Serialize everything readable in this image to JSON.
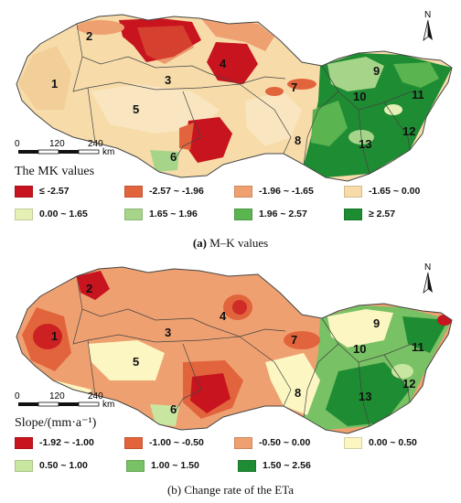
{
  "figure": {
    "map_units_km": [
      "0",
      "120",
      "240",
      "km"
    ],
    "north_label": "N",
    "region_numbers": [
      "1",
      "2",
      "3",
      "4",
      "5",
      "6",
      "7",
      "8",
      "9",
      "10",
      "11",
      "12",
      "13"
    ]
  },
  "panels": [
    {
      "id": "a",
      "legend_title": "The MK values",
      "caption_letter": "(a)",
      "caption_text": " M–K values",
      "legend": [
        {
          "label": "≤ -2.57",
          "color": "#c8141e"
        },
        {
          "label": "-2.57 ~ -1.96",
          "color": "#e2643c"
        },
        {
          "label": "-1.96 ~ -1.65",
          "color": "#efa070"
        },
        {
          "label": "-1.65 ~ 0.00",
          "color": "#f7dcaa"
        },
        {
          "label": "0.00 ~ 1.65",
          "color": "#e4f0b4"
        },
        {
          "label": "1.65 ~ 1.96",
          "color": "#a6d58a"
        },
        {
          "label": "1.96 ~ 2.57",
          "color": "#5ab450"
        },
        {
          "label": "≥ 2.57",
          "color": "#1e8c32"
        }
      ]
    },
    {
      "id": "b",
      "legend_title": "Slope/(mm·a⁻¹)",
      "caption_letter": "(b)",
      "caption_text": " Change rate of the ETa",
      "legend": [
        {
          "label": "-1.92 ~ -1.00",
          "color": "#c8141e"
        },
        {
          "label": "-1.00 ~ -0.50",
          "color": "#e2643c"
        },
        {
          "label": "-0.50 ~ 0.00",
          "color": "#efa070"
        },
        {
          "label": "0.00 ~ 0.50",
          "color": "#fcf6c2"
        },
        {
          "label": "0.50 ~ 1.00",
          "color": "#c8e6a0"
        },
        {
          "label": "1.00 ~ 1.50",
          "color": "#78c164"
        },
        {
          "label": "1.50 ~ 2.56",
          "color": "#1e8c32"
        }
      ]
    }
  ]
}
